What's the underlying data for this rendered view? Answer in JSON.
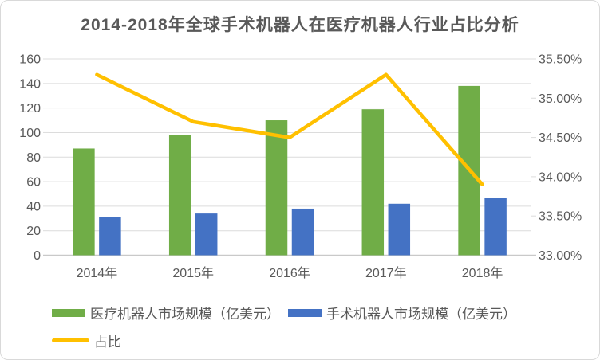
{
  "colors": {
    "green": "#70AD47",
    "blue": "#4472C4",
    "yellow": "#FFC000",
    "text": "#595959",
    "grid": "#DCDCDC",
    "axis": "#C9C9C9",
    "border": "#D9D9D9"
  },
  "chart_data": {
    "type": "bar",
    "subtype": "bar-line-combo",
    "title": "2014-2018年全球手术机器人在医疗机器人行业占比分析",
    "categories": [
      "2014年",
      "2015年",
      "2016年",
      "2017年",
      "2018年"
    ],
    "series": [
      {
        "name": "医疗机器人市场规模（亿美元）",
        "type": "bar",
        "axis": "left",
        "color": "#70AD47",
        "values": [
          87,
          98,
          110,
          119,
          138
        ]
      },
      {
        "name": "手术机器人市场规模（亿美元）",
        "type": "bar",
        "axis": "left",
        "color": "#4472C4",
        "values": [
          31,
          34,
          38,
          42,
          47
        ]
      },
      {
        "name": "占比",
        "type": "line",
        "axis": "right",
        "color": "#FFC000",
        "values": [
          35.3,
          34.7,
          34.5,
          35.3,
          33.9
        ]
      }
    ],
    "left_axis": {
      "min": 0,
      "max": 160,
      "step": 20,
      "tick_labels": [
        "0",
        "20",
        "40",
        "60",
        "80",
        "100",
        "120",
        "140",
        "160"
      ]
    },
    "right_axis": {
      "min": 33.0,
      "max": 35.5,
      "step": 0.5,
      "tick_labels": [
        "33.00%",
        "33.50%",
        "34.00%",
        "34.50%",
        "35.00%",
        "35.50%"
      ]
    },
    "grid": true,
    "legend_position": "bottom"
  }
}
